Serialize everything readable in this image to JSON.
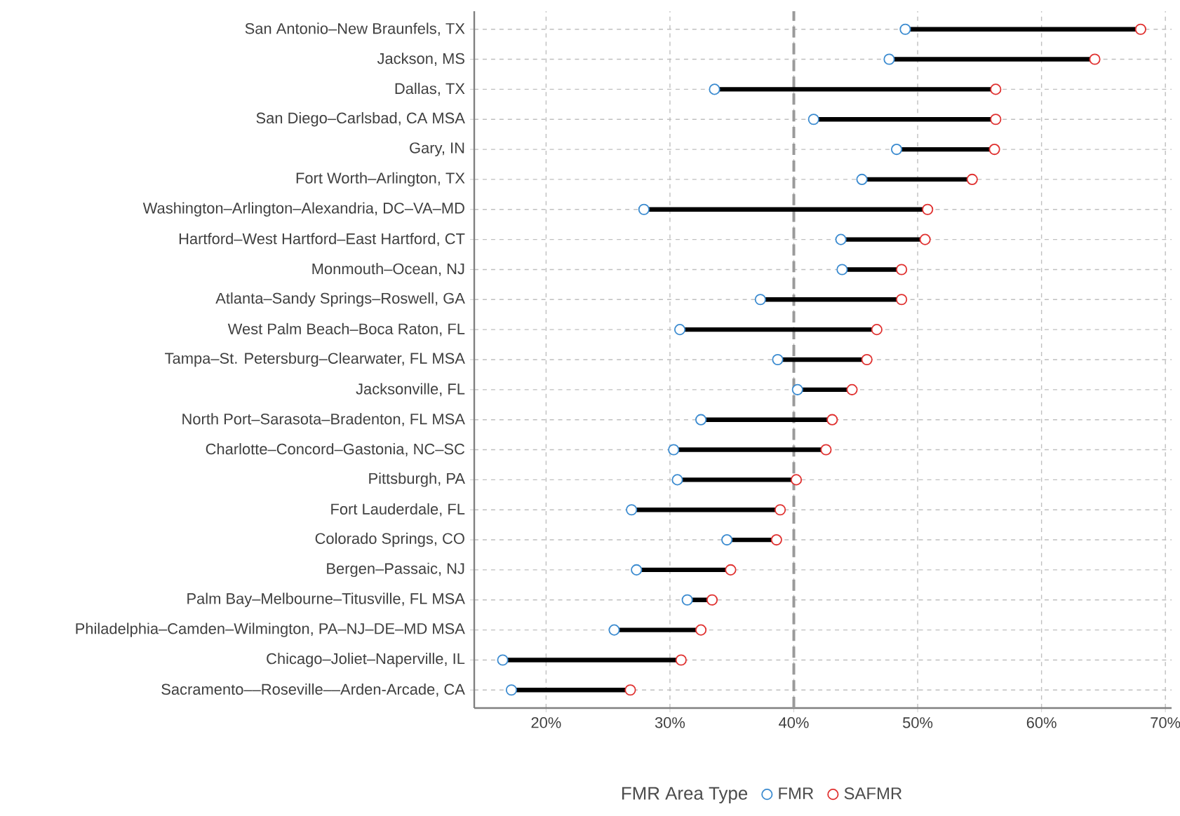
{
  "chart_data": {
    "type": "scatter",
    "orientation": "horizontal",
    "legend_title": "FMR Area Type",
    "legend": "bottom",
    "grid": true,
    "categories": [
      "San Antonio–New Braunfels, TX",
      "Jackson, MS",
      "Dallas, TX",
      "San Diego–Carlsbad, CA MSA",
      "Gary, IN",
      "Fort Worth–Arlington, TX",
      "Washington–Arlington–Alexandria, DC–VA–MD",
      "Hartford–West Hartford–East Hartford, CT",
      "Monmouth–Ocean, NJ",
      "Atlanta–Sandy Springs–Roswell, GA",
      "West Palm Beach–Boca Raton, FL",
      "Tampa–St. Petersburg–Clearwater, FL MSA",
      "Jacksonville, FL",
      "North Port–Sarasota–Bradenton, FL MSA",
      "Charlotte–Concord–Gastonia, NC–SC",
      "Pittsburgh, PA",
      "Fort Lauderdale, FL",
      "Colorado Springs, CO",
      "Bergen–Passaic, NJ",
      "Palm Bay–Melbourne–Titusville, FL MSA",
      "Philadelphia–Camden–Wilmington, PA–NJ–DE–MD MSA",
      "Chicago–Joliet–Naperville, IL",
      "Sacramento––Roseville––Arden-Arcade, CA"
    ],
    "series": [
      {
        "name": "FMR",
        "color": "#3b8bd0",
        "values": [
          49.0,
          47.7,
          33.6,
          41.6,
          48.3,
          45.5,
          27.9,
          43.8,
          43.9,
          37.3,
          30.8,
          38.7,
          40.3,
          32.5,
          30.3,
          30.6,
          26.9,
          34.6,
          27.3,
          31.4,
          25.5,
          16.5,
          17.2
        ]
      },
      {
        "name": "SAFMR",
        "color": "#e0302f",
        "values": [
          68.0,
          64.3,
          56.3,
          56.3,
          56.2,
          54.4,
          50.8,
          50.6,
          48.7,
          48.7,
          46.7,
          45.9,
          44.7,
          43.1,
          42.6,
          40.2,
          38.9,
          38.6,
          34.9,
          33.4,
          32.5,
          30.9,
          26.8
        ]
      }
    ],
    "xlim": [
      14.2,
      70.5
    ],
    "xticks": [
      {
        "value": 20,
        "label": "20%"
      },
      {
        "value": 30,
        "label": "30%"
      },
      {
        "value": 40,
        "label": "40%"
      },
      {
        "value": 50,
        "label": "50%"
      },
      {
        "value": 60,
        "label": "60%"
      },
      {
        "value": 70,
        "label": "70%"
      }
    ],
    "ref_lines": [
      {
        "axis": "x",
        "value": 40,
        "color": "#9a9a9a",
        "line_style": "dashed"
      }
    ]
  }
}
